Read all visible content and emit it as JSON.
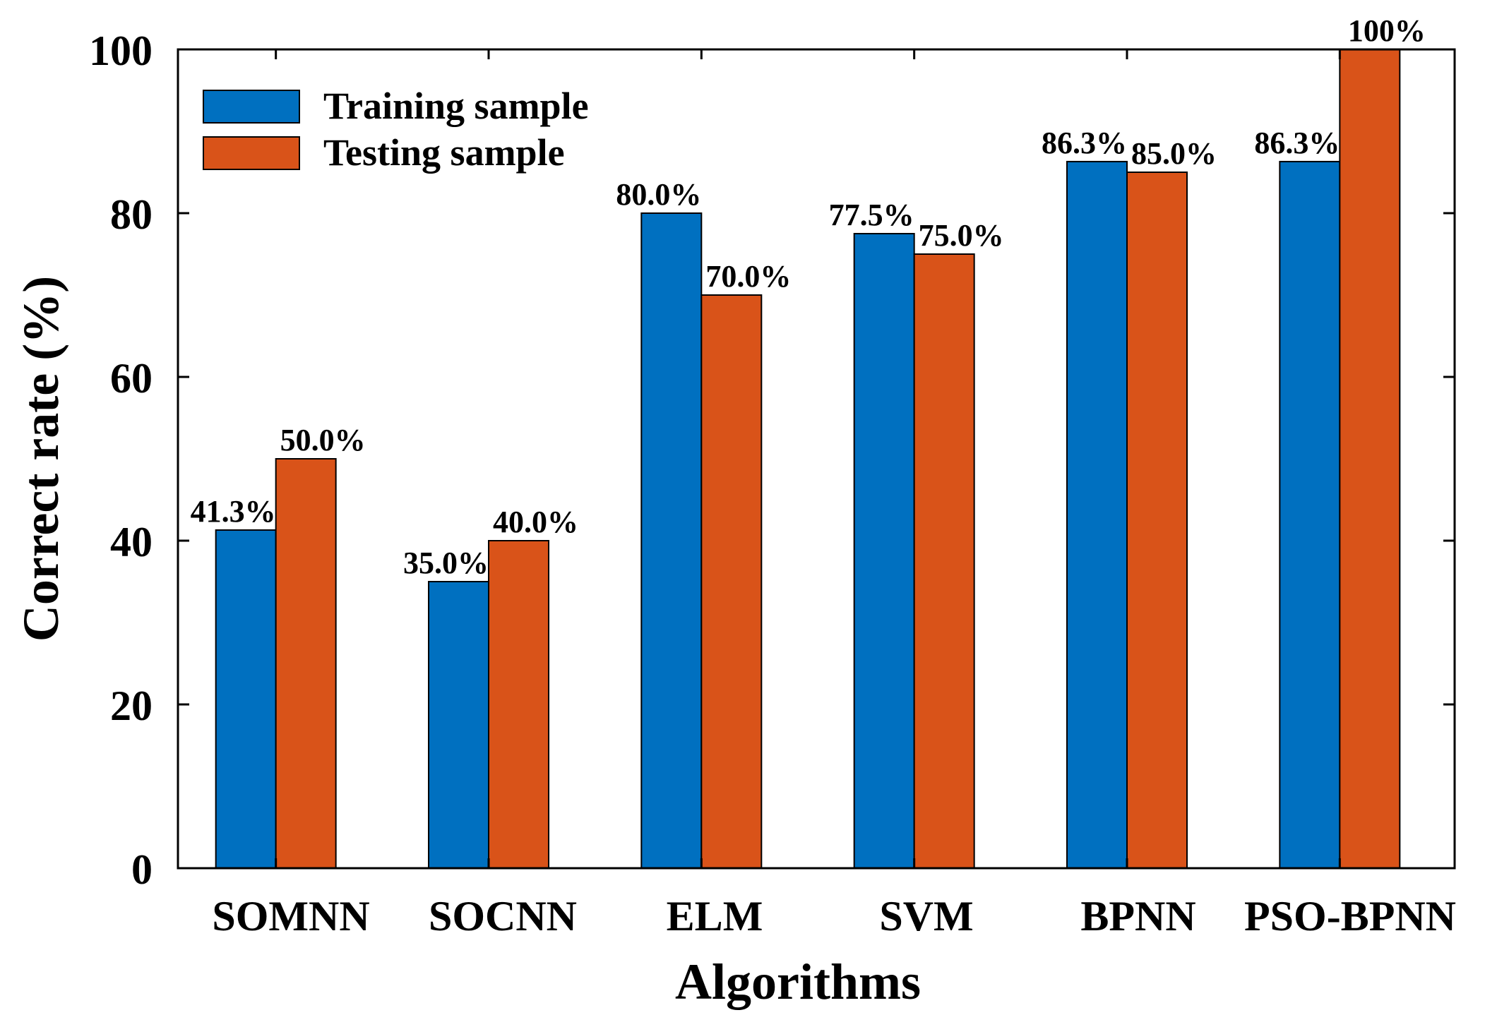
{
  "chart_data": {
    "type": "bar",
    "title": "",
    "xlabel": "Algorithms",
    "ylabel": "Correct rate (%)",
    "ylim": [
      0,
      100
    ],
    "yticks": [
      "0",
      "20",
      "40",
      "60",
      "80",
      "100"
    ],
    "categories": [
      "SOMNN",
      "SOCNN",
      "ELM",
      "SVM",
      "BPNN",
      "PSO-BPNN"
    ],
    "series": [
      {
        "name": "Training sample",
        "color": "#0070C0",
        "values": [
          41.3,
          35.0,
          80.0,
          77.5,
          86.3,
          86.3
        ],
        "labels": [
          "41.3%",
          "35.0%",
          "80.0%",
          "77.5%",
          "86.3%",
          "86.3%"
        ]
      },
      {
        "name": "Testing sample",
        "color": "#D95319",
        "values": [
          50.0,
          40.0,
          70.0,
          75.0,
          85.0,
          100
        ],
        "labels": [
          "50.0%",
          "40.0%",
          "70.0%",
          "75.0%",
          "85.0%",
          "100%"
        ]
      }
    ],
    "legend": "top-left",
    "grid": false
  }
}
